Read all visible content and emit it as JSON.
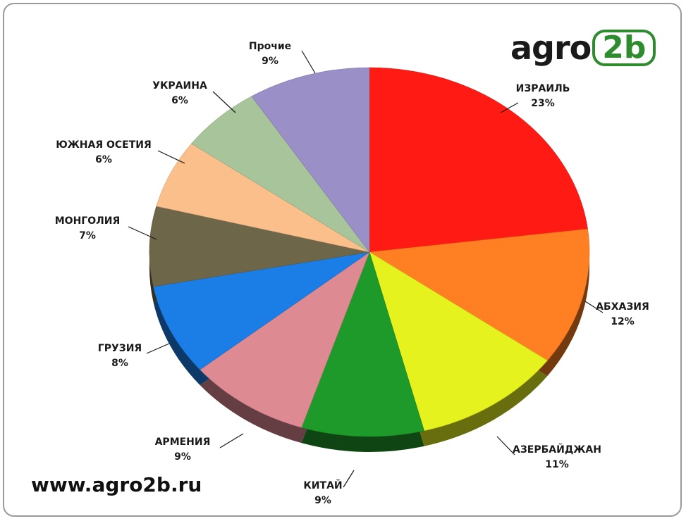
{
  "logo": {
    "text": "agro",
    "badge": "2b"
  },
  "site_url": "www.agro2b.ru",
  "chart_data": {
    "type": "pie",
    "title": "",
    "start": "12 o'clock, clockwise",
    "three_d": true,
    "series": [
      {
        "name": "ИЗРАИЛЬ",
        "label": "23%",
        "value": 23,
        "color": "#ff1a14"
      },
      {
        "name": "АБХАЗИЯ",
        "label": "12%",
        "value": 12,
        "color": "#ff7f22"
      },
      {
        "name": "АЗЕРБАЙДЖАН",
        "label": "11%",
        "value": 11,
        "color": "#e6f21e"
      },
      {
        "name": "КИТАЙ",
        "label": "9%",
        "value": 9,
        "color": "#1e9a2a"
      },
      {
        "name": "АРМЕНИЯ",
        "label": "9%",
        "value": 9,
        "color": "#de8a92"
      },
      {
        "name": "ГРУЗИЯ",
        "label": "8%",
        "value": 8,
        "color": "#1a7ee6"
      },
      {
        "name": "МОНГОЛИЯ",
        "label": "7%",
        "value": 7,
        "color": "#6e6648"
      },
      {
        "name": "ЮЖНАЯ ОСЕТИЯ",
        "label": "6%",
        "value": 6,
        "color": "#fbbf8c"
      },
      {
        "name": "УКРАИНА",
        "label": "6%",
        "value": 6,
        "color": "#a8c49a"
      },
      {
        "name": "Прочие",
        "label": "9%",
        "value": 9,
        "color": "#9a8fc6"
      }
    ]
  }
}
